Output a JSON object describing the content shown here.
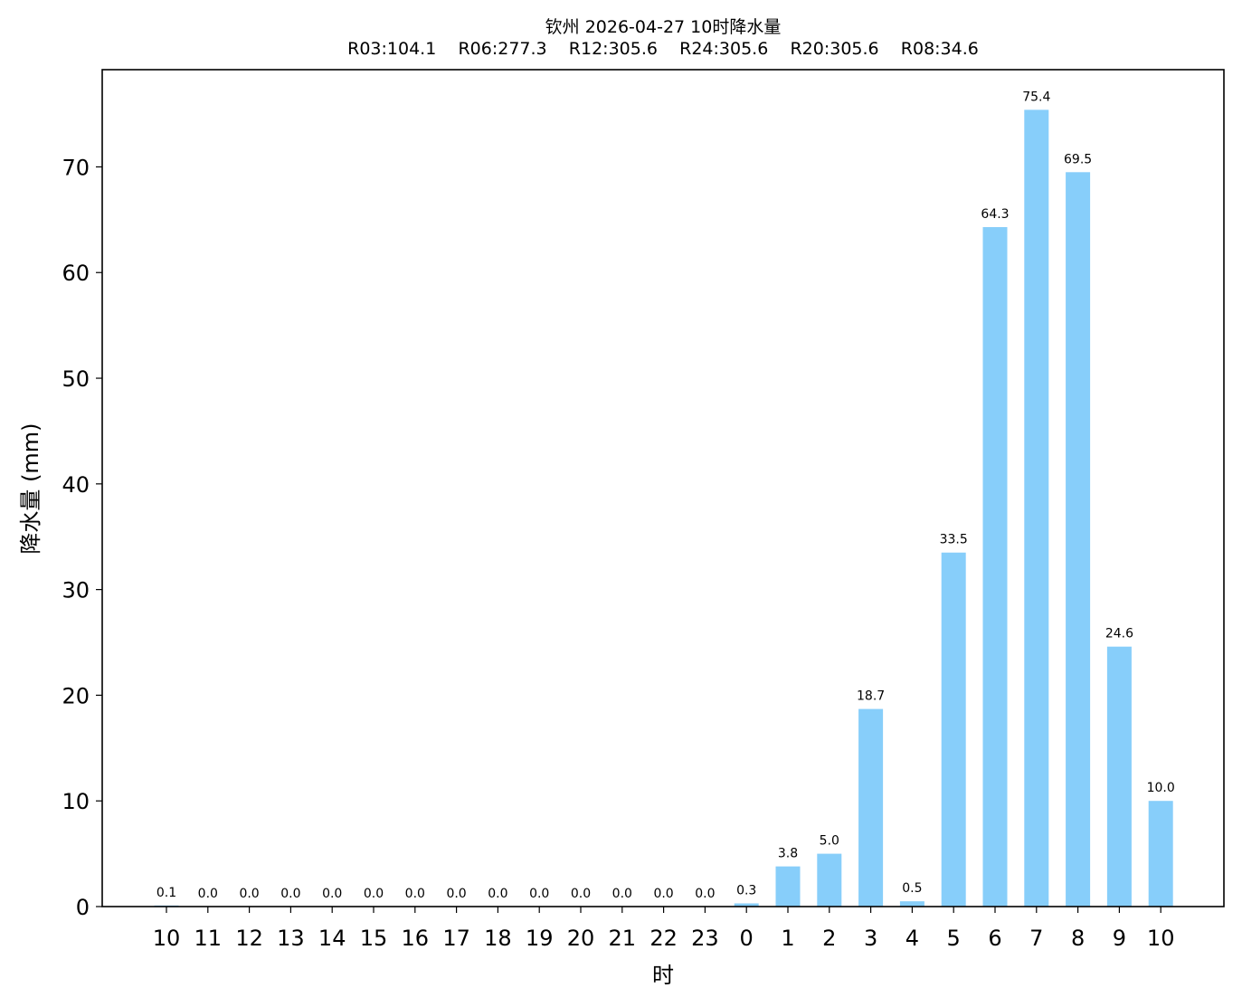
{
  "chart_data": {
    "type": "bar",
    "title": "钦州 2026-04-27 10时降水量",
    "subtitle": "R03:104.1    R06:277.3    R12:305.6    R24:305.6    R20:305.6    R08:34.6",
    "xlabel": "时",
    "ylabel": "降水量 (mm)",
    "categories": [
      "10",
      "11",
      "12",
      "13",
      "14",
      "15",
      "16",
      "17",
      "18",
      "19",
      "20",
      "21",
      "22",
      "23",
      "0",
      "1",
      "2",
      "3",
      "4",
      "5",
      "6",
      "7",
      "8",
      "9",
      "10"
    ],
    "values": [
      0.1,
      0.0,
      0.0,
      0.0,
      0.0,
      0.0,
      0.0,
      0.0,
      0.0,
      0.0,
      0.0,
      0.0,
      0.0,
      0.0,
      0.3,
      3.8,
      5.0,
      18.7,
      0.5,
      33.5,
      64.3,
      75.4,
      69.5,
      24.6,
      10.0
    ],
    "data_labels": [
      "0.1",
      "0.0",
      "0.0",
      "0.0",
      "0.0",
      "0.0",
      "0.0",
      "0.0",
      "0.0",
      "0.0",
      "0.0",
      "0.0",
      "0.0",
      "0.0",
      "0.3",
      "3.8",
      "5.0",
      "18.7",
      "0.5",
      "33.5",
      "64.3",
      "75.4",
      "69.5",
      "24.6",
      "10.0"
    ],
    "yticks": [
      "0",
      "10",
      "20",
      "30",
      "40",
      "50",
      "60",
      "70"
    ],
    "ylim": [
      0,
      79.2
    ],
    "grid": false,
    "bar_color": "#87CEFA"
  }
}
